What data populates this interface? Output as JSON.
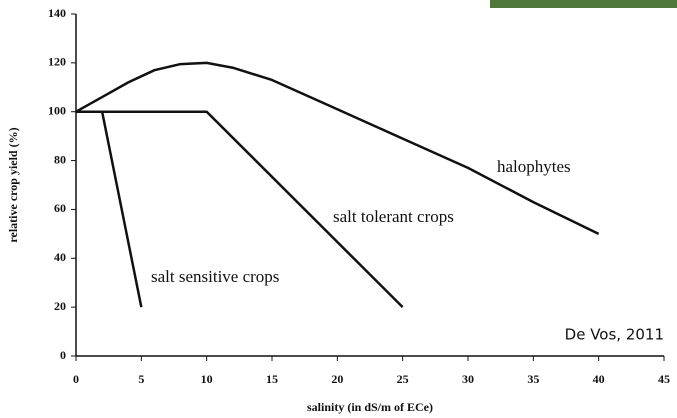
{
  "chart_data": {
    "type": "line",
    "x_label": "salinity (in dS/m of ECe)",
    "y_label": "relative crop yield (%)",
    "annotation": "De Vos, 2011",
    "xlim": [
      0,
      45
    ],
    "xticks": [
      0,
      5,
      10,
      15,
      20,
      25,
      30,
      35,
      40,
      45
    ],
    "ylim": [
      0,
      140
    ],
    "yticks": [
      0,
      20,
      40,
      60,
      80,
      100,
      120,
      140
    ],
    "series": [
      {
        "name": "halophytes",
        "color": "#111111",
        "x": [
          0,
          2,
          4,
          6,
          8,
          10,
          12,
          15,
          20,
          25,
          30,
          35,
          40
        ],
        "values": [
          100,
          106,
          112,
          117,
          119.5,
          120,
          118,
          113,
          101,
          89,
          77,
          63,
          50
        ]
      },
      {
        "name": "salt tolerant crops",
        "color": "#111111",
        "x": [
          0,
          10,
          25
        ],
        "values": [
          100,
          100,
          20
        ]
      },
      {
        "name": "salt sensitive crops",
        "color": "#111111",
        "x": [
          0,
          2,
          5
        ],
        "values": [
          100,
          100,
          20
        ]
      }
    ]
  }
}
